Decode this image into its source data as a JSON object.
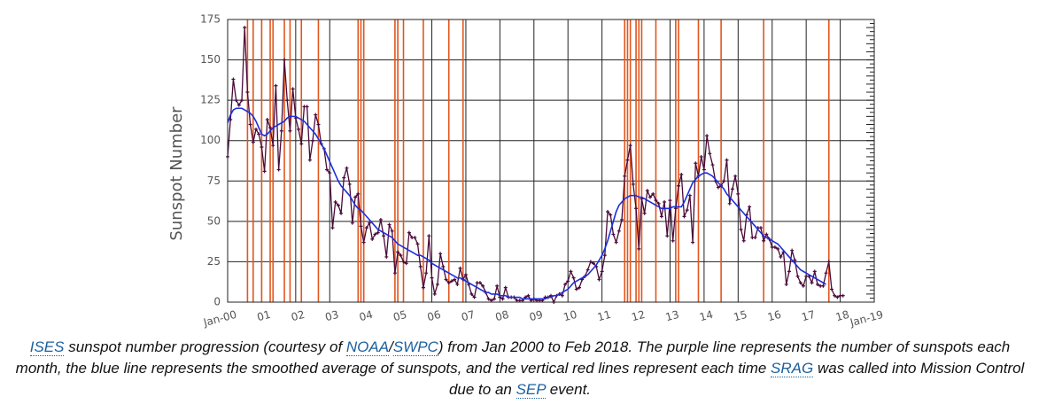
{
  "chart_data": {
    "type": "line",
    "y_label": "Sunspot Number",
    "ylim": [
      0,
      175
    ],
    "yticks": [
      0,
      25,
      50,
      75,
      100,
      125,
      150,
      175
    ],
    "xlim": [
      "2000-01",
      "2019-01"
    ],
    "xticks": [
      {
        "value": "2000-01",
        "label": "Jan-00"
      },
      {
        "value": "2001-01",
        "label": "01"
      },
      {
        "value": "2002-01",
        "label": "02"
      },
      {
        "value": "2003-01",
        "label": "03"
      },
      {
        "value": "2004-01",
        "label": "04"
      },
      {
        "value": "2005-01",
        "label": "05"
      },
      {
        "value": "2006-01",
        "label": "06"
      },
      {
        "value": "2007-01",
        "label": "07"
      },
      {
        "value": "2008-01",
        "label": "08"
      },
      {
        "value": "2009-01",
        "label": "09"
      },
      {
        "value": "2010-01",
        "label": "10"
      },
      {
        "value": "2011-01",
        "label": "11"
      },
      {
        "value": "2012-01",
        "label": "12"
      },
      {
        "value": "2013-01",
        "label": "13"
      },
      {
        "value": "2014-01",
        "label": "14"
      },
      {
        "value": "2015-01",
        "label": "15"
      },
      {
        "value": "2016-01",
        "label": "16"
      },
      {
        "value": "2017-01",
        "label": "17"
      },
      {
        "value": "2018-01",
        "label": "18"
      },
      {
        "value": "2019-01",
        "label": "Jan-19"
      }
    ],
    "grid": true,
    "x": [
      "2000-01",
      "2000-02",
      "2000-03",
      "2000-04",
      "2000-05",
      "2000-06",
      "2000-07",
      "2000-08",
      "2000-09",
      "2000-10",
      "2000-11",
      "2000-12",
      "2001-01",
      "2001-02",
      "2001-03",
      "2001-04",
      "2001-05",
      "2001-06",
      "2001-07",
      "2001-08",
      "2001-09",
      "2001-10",
      "2001-11",
      "2001-12",
      "2002-01",
      "2002-02",
      "2002-03",
      "2002-04",
      "2002-05",
      "2002-06",
      "2002-07",
      "2002-08",
      "2002-09",
      "2002-10",
      "2002-11",
      "2002-12",
      "2003-01",
      "2003-02",
      "2003-03",
      "2003-04",
      "2003-05",
      "2003-06",
      "2003-07",
      "2003-08",
      "2003-09",
      "2003-10",
      "2003-11",
      "2003-12",
      "2004-01",
      "2004-02",
      "2004-03",
      "2004-04",
      "2004-05",
      "2004-06",
      "2004-07",
      "2004-08",
      "2004-09",
      "2004-10",
      "2004-11",
      "2004-12",
      "2005-01",
      "2005-02",
      "2005-03",
      "2005-04",
      "2005-05",
      "2005-06",
      "2005-07",
      "2005-08",
      "2005-09",
      "2005-10",
      "2005-11",
      "2005-12",
      "2006-01",
      "2006-02",
      "2006-03",
      "2006-04",
      "2006-05",
      "2006-06",
      "2006-07",
      "2006-08",
      "2006-09",
      "2006-10",
      "2006-11",
      "2006-12",
      "2007-01",
      "2007-02",
      "2007-03",
      "2007-04",
      "2007-05",
      "2007-06",
      "2007-07",
      "2007-08",
      "2007-09",
      "2007-10",
      "2007-11",
      "2007-12",
      "2008-01",
      "2008-02",
      "2008-03",
      "2008-04",
      "2008-05",
      "2008-06",
      "2008-07",
      "2008-08",
      "2008-09",
      "2008-10",
      "2008-11",
      "2008-12",
      "2009-01",
      "2009-02",
      "2009-03",
      "2009-04",
      "2009-05",
      "2009-06",
      "2009-07",
      "2009-08",
      "2009-09",
      "2009-10",
      "2009-11",
      "2009-12",
      "2010-01",
      "2010-02",
      "2010-03",
      "2010-04",
      "2010-05",
      "2010-06",
      "2010-07",
      "2010-08",
      "2010-09",
      "2010-10",
      "2010-11",
      "2010-12",
      "2011-01",
      "2011-02",
      "2011-03",
      "2011-04",
      "2011-05",
      "2011-06",
      "2011-07",
      "2011-08",
      "2011-09",
      "2011-10",
      "2011-11",
      "2011-12",
      "2012-01",
      "2012-02",
      "2012-03",
      "2012-04",
      "2012-05",
      "2012-06",
      "2012-07",
      "2012-08",
      "2012-09",
      "2012-10",
      "2012-11",
      "2012-12",
      "2013-01",
      "2013-02",
      "2013-03",
      "2013-04",
      "2013-05",
      "2013-06",
      "2013-07",
      "2013-08",
      "2013-09",
      "2013-10",
      "2013-11",
      "2013-12",
      "2014-01",
      "2014-02",
      "2014-03",
      "2014-04",
      "2014-05",
      "2014-06",
      "2014-07",
      "2014-08",
      "2014-09",
      "2014-10",
      "2014-11",
      "2014-12",
      "2015-01",
      "2015-02",
      "2015-03",
      "2015-04",
      "2015-05",
      "2015-06",
      "2015-07",
      "2015-08",
      "2015-09",
      "2015-10",
      "2015-11",
      "2015-12",
      "2016-01",
      "2016-02",
      "2016-03",
      "2016-04",
      "2016-05",
      "2016-06",
      "2016-07",
      "2016-08",
      "2016-09",
      "2016-10",
      "2016-11",
      "2016-12",
      "2017-01",
      "2017-02",
      "2017-03",
      "2017-04",
      "2017-05",
      "2017-06",
      "2017-07",
      "2017-08",
      "2017-09",
      "2017-10",
      "2017-11",
      "2017-12",
      "2018-01",
      "2018-02"
    ],
    "series": [
      {
        "color": "#4a0a3a",
        "marker": true,
        "values": [
          90,
          113,
          138,
          125,
          122,
          125,
          170,
          130,
          110,
          99,
          107,
          104,
          96,
          81,
          113,
          108,
          97,
          134,
          82,
          106,
          150,
          125,
          106,
          132,
          114,
          107,
          98,
          121,
          121,
          88,
          100,
          116,
          110,
          98,
          95,
          82,
          80,
          46,
          62,
          60,
          55,
          77,
          83,
          73,
          49,
          65,
          67,
          47,
          37,
          46,
          49,
          39,
          42,
          43,
          51,
          41,
          28,
          48,
          44,
          18,
          31,
          29,
          25,
          24,
          43,
          40,
          40,
          36,
          22,
          9,
          18,
          41,
          15,
          5,
          11,
          30,
          22,
          14,
          12,
          13,
          14,
          11,
          21,
          14,
          17,
          11,
          5,
          3,
          12,
          12,
          10,
          6,
          2,
          1,
          2,
          10,
          3,
          2,
          9,
          3,
          3,
          3,
          1,
          1,
          1,
          3,
          4,
          1,
          2,
          1,
          1,
          1,
          3,
          3,
          4,
          0,
          4,
          5,
          4,
          11,
          13,
          19,
          15,
          8,
          9,
          14,
          16,
          20,
          25,
          24,
          22,
          14,
          19,
          29,
          56,
          54,
          42,
          37,
          44,
          51,
          78,
          88,
          97,
          73,
          58,
          33,
          64,
          55,
          69,
          65,
          67,
          63,
          61,
          53,
          62,
          41,
          63,
          38,
          58,
          72,
          79,
          53,
          57,
          66,
          37,
          86,
          78,
          90,
          82,
          103,
          92,
          85,
          75,
          71,
          72,
          75,
          88,
          61,
          70,
          78,
          67,
          45,
          38,
          54,
          59,
          40,
          40,
          46,
          46,
          38,
          42,
          39,
          34,
          34,
          33,
          28,
          31,
          11,
          19,
          32,
          26,
          16,
          12,
          10,
          16,
          16,
          12,
          19,
          11,
          10,
          10,
          18,
          25,
          8,
          4,
          3,
          4,
          4
        ]
      },
      {
        "color": "#1a2ee0",
        "marker": false,
        "values": [
          111,
          116,
          119,
          120,
          120,
          120,
          119,
          118,
          117,
          115,
          112,
          108,
          104,
          103,
          104,
          106,
          108,
          109,
          110,
          111,
          112,
          114,
          115,
          115,
          115,
          114,
          113,
          112,
          110,
          108,
          106,
          104,
          101,
          98,
          95,
          91,
          87,
          83,
          79,
          75,
          72,
          70,
          68,
          66,
          63,
          60,
          58,
          57,
          55,
          53,
          51,
          49,
          47,
          45,
          44,
          43,
          42,
          41,
          40,
          38,
          36,
          35,
          34,
          33,
          32,
          31,
          30,
          29,
          29,
          28,
          27,
          26,
          24,
          23,
          22,
          21,
          20,
          19,
          18,
          17,
          16,
          15,
          15,
          14,
          13,
          12,
          11,
          10,
          9,
          8,
          7,
          6,
          6,
          5,
          5,
          5,
          4,
          4,
          4,
          3,
          3,
          3,
          3,
          3,
          2,
          2,
          2,
          2,
          2,
          2,
          2,
          2,
          2,
          3,
          3,
          4,
          4,
          5,
          6,
          7,
          8,
          10,
          12,
          13,
          14,
          15,
          16,
          17,
          19,
          21,
          23,
          26,
          29,
          33,
          38,
          44,
          50,
          56,
          60,
          62,
          64,
          65,
          66,
          66,
          66,
          65,
          65,
          64,
          63,
          62,
          61,
          60,
          59,
          58,
          58,
          58,
          58,
          59,
          59,
          59,
          59,
          62,
          66,
          70,
          74,
          76,
          78,
          79,
          80,
          80,
          79,
          78,
          76,
          74,
          72,
          70,
          67,
          65,
          63,
          61,
          59,
          57,
          55,
          53,
          51,
          49,
          47,
          45,
          43,
          41,
          40,
          39,
          38,
          37,
          36,
          34,
          32,
          30,
          28,
          26,
          24,
          22,
          20,
          19,
          18,
          17,
          16,
          15,
          14,
          13,
          12,
          11,
          null,
          null,
          null,
          null,
          null,
          null
        ]
      }
    ],
    "events_color": "#e2561e",
    "events": [
      "2000-08",
      "2000-10",
      "2001-01",
      "2001-04",
      "2001-05",
      "2001-09",
      "2001-11",
      "2002-03",
      "2002-09",
      "2003-11",
      "2003-12",
      "2004-01",
      "2004-12",
      "2005-01",
      "2005-03",
      "2005-10",
      "2006-07",
      "2006-12",
      "2011-09",
      "2011-10",
      "2011-11",
      "2012-01",
      "2012-02",
      "2012-03",
      "2012-08",
      "2013-03",
      "2013-04",
      "2013-11",
      "2014-07",
      "2015-10",
      "2017-09"
    ]
  },
  "caption": {
    "parts": [
      {
        "text": "ISES",
        "link": true
      },
      {
        "text": " sunspot number progression (courtesy of ",
        "link": false
      },
      {
        "text": "NOAA",
        "link": true
      },
      {
        "text": "/",
        "link": false
      },
      {
        "text": "SWPC",
        "link": true
      },
      {
        "text": ") from Jan 2000 to Feb 2018. The purple line represents the number of sunspots each month, the blue line represents the smoothed average of sunspots, and the vertical red lines represent each time ",
        "link": false
      },
      {
        "text": "SRAG",
        "link": true
      },
      {
        "text": " was called into Mission Control due to an ",
        "link": false
      },
      {
        "text": "SEP",
        "link": true
      },
      {
        "text": " event.",
        "link": false
      }
    ]
  }
}
